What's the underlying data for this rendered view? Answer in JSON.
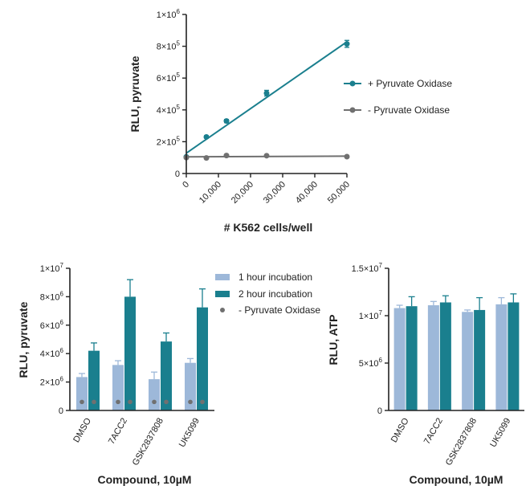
{
  "colors": {
    "teal": "#1a7f8e",
    "light_blue": "#9db8d9",
    "gray": "#707070",
    "axis": "#222222"
  },
  "chart_data": [
    {
      "type": "line",
      "xlabel": "# K562 cells/well",
      "ylabel": "RLU, pyruvate",
      "xlim": [
        0,
        50000
      ],
      "ylim": [
        0,
        1000000
      ],
      "x_ticks": [
        0,
        10000,
        20000,
        30000,
        40000,
        50000
      ],
      "x_tick_labels": [
        "0",
        "10,000",
        "20,000",
        "30,000",
        "40,000",
        "50,000"
      ],
      "y_ticks": [
        0,
        200000,
        400000,
        600000,
        800000,
        1000000
      ],
      "y_tick_labels": [
        {
          "base": "0",
          "exp": ""
        },
        {
          "base": "2×10",
          "exp": "5"
        },
        {
          "base": "4×10",
          "exp": "5"
        },
        {
          "base": "6×10",
          "exp": "5"
        },
        {
          "base": "8×10",
          "exp": "5"
        },
        {
          "base": "1×10",
          "exp": "6"
        }
      ],
      "legend_position": "right",
      "series": [
        {
          "name": "+ Pyruvate Oxidase",
          "color": "#1a7f8e",
          "x": [
            0,
            6250,
            12500,
            25000,
            50000
          ],
          "y": [
            105000,
            230000,
            330000,
            505000,
            815000
          ],
          "err": [
            0,
            8000,
            10000,
            18000,
            22000
          ],
          "fit": [
            [
              0,
              128000
            ],
            [
              50000,
              828000
            ]
          ]
        },
        {
          "name": "- Pyruvate Oxidase",
          "color": "#707070",
          "x": [
            0,
            6250,
            12500,
            25000,
            50000
          ],
          "y": [
            100000,
            98000,
            113000,
            112000,
            106000
          ],
          "err": [
            0,
            0,
            0,
            0,
            0
          ],
          "fit": [
            [
              0,
              105000
            ],
            [
              50000,
              109000
            ]
          ]
        }
      ]
    },
    {
      "type": "bar",
      "xlabel": "Compound, 10µM",
      "ylabel": "RLU, pyruvate",
      "categories": [
        "DMSO",
        "7ACC2",
        "GSK2837808",
        "UK5099"
      ],
      "ylim": [
        0,
        10000000
      ],
      "y_ticks": [
        0,
        2000000,
        4000000,
        6000000,
        8000000,
        10000000
      ],
      "y_tick_labels": [
        {
          "base": "0",
          "exp": ""
        },
        {
          "base": "2×10",
          "exp": "6"
        },
        {
          "base": "4×10",
          "exp": "6"
        },
        {
          "base": "6×10",
          "exp": "6"
        },
        {
          "base": "8×10",
          "exp": "6"
        },
        {
          "base": "1×10",
          "exp": "7"
        }
      ],
      "legend_position": "top-right",
      "series": [
        {
          "name": "1 hour incubation",
          "color": "#9db8d9",
          "values": [
            2350000,
            3200000,
            2200000,
            3350000
          ],
          "err": [
            250000,
            300000,
            500000,
            300000
          ]
        },
        {
          "name": "2 hour incubation",
          "color": "#1a7f8e",
          "values": [
            4200000,
            8000000,
            4850000,
            7250000
          ],
          "err": [
            550000,
            1200000,
            600000,
            1300000
          ]
        },
        {
          "name": "- Pyruvate Oxidase",
          "color": "#707070",
          "values": [
            600000,
            600000,
            600000,
            600000
          ]
        }
      ]
    },
    {
      "type": "bar",
      "xlabel": "Compound, 10µM",
      "ylabel": "RLU, ATP",
      "categories": [
        "DMSO",
        "7ACC2",
        "GSK2837808",
        "UK5099"
      ],
      "ylim": [
        0,
        15000000
      ],
      "y_ticks": [
        0,
        5000000,
        10000000,
        15000000
      ],
      "y_tick_labels": [
        {
          "base": "0",
          "exp": ""
        },
        {
          "base": "5×10",
          "exp": "6"
        },
        {
          "base": "1×10",
          "exp": "7"
        },
        {
          "base": "1.5×10",
          "exp": "7"
        }
      ],
      "series": [
        {
          "name": "1 hour incubation",
          "color": "#9db8d9",
          "values": [
            10800000,
            11100000,
            10400000,
            11200000
          ],
          "err": [
            300000,
            400000,
            200000,
            700000
          ]
        },
        {
          "name": "2 hour incubation",
          "color": "#1a7f8e",
          "values": [
            11000000,
            11400000,
            10600000,
            11400000
          ],
          "err": [
            1000000,
            700000,
            1300000,
            900000
          ]
        }
      ]
    }
  ]
}
